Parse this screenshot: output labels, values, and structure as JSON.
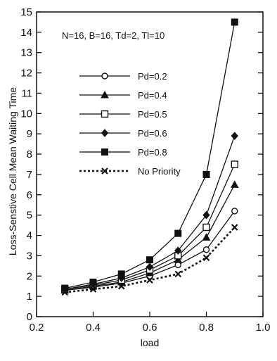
{
  "chart_data": {
    "type": "line",
    "title": "",
    "annotation": "N=16, B=16, Td=2, Tl=10",
    "xlabel": "load",
    "ylabel": "Loss-Senstive Cell Mean Waiting Time",
    "xlim": [
      0.2,
      1.0
    ],
    "ylim": [
      0,
      15
    ],
    "xticks": [
      0.2,
      0.4,
      0.6,
      0.8,
      1.0
    ],
    "xtick_labels": [
      "0.2",
      "0.4",
      "0.6",
      "0.8",
      "1.0"
    ],
    "yticks": [
      0,
      1,
      2,
      3,
      4,
      5,
      6,
      7,
      8,
      9,
      10,
      11,
      12,
      13,
      14,
      15
    ],
    "ytick_labels": [
      "0",
      "1",
      "2",
      "3",
      "4",
      "5",
      "6",
      "7",
      "8",
      "9",
      "10",
      "11",
      "12",
      "13",
      "14",
      "15"
    ],
    "grid": false,
    "legend_position": "upper-left",
    "x": [
      0.3,
      0.4,
      0.5,
      0.6,
      0.7,
      0.8,
      0.9
    ],
    "series": [
      {
        "name": "Pd=0.2",
        "marker": "open-circle",
        "dashed": false,
        "values": [
          1.3,
          1.45,
          1.65,
          2.0,
          2.55,
          3.3,
          5.2
        ]
      },
      {
        "name": "Pd=0.4",
        "marker": "filled-triangle",
        "dashed": false,
        "values": [
          1.3,
          1.5,
          1.7,
          2.15,
          2.8,
          3.9,
          6.5
        ]
      },
      {
        "name": "Pd=0.5",
        "marker": "open-square",
        "dashed": false,
        "values": [
          1.35,
          1.55,
          1.8,
          2.3,
          3.0,
          4.4,
          7.5
        ]
      },
      {
        "name": "Pd=0.6",
        "marker": "filled-diamond",
        "dashed": false,
        "values": [
          1.35,
          1.6,
          1.9,
          2.45,
          3.25,
          5.0,
          8.9
        ]
      },
      {
        "name": "Pd=0.8",
        "marker": "filled-square",
        "dashed": false,
        "values": [
          1.4,
          1.7,
          2.1,
          2.8,
          4.1,
          7.0,
          14.5
        ]
      },
      {
        "name": "No Priority",
        "marker": "x",
        "dashed": true,
        "values": [
          1.2,
          1.35,
          1.5,
          1.8,
          2.1,
          2.9,
          4.4
        ]
      }
    ]
  }
}
